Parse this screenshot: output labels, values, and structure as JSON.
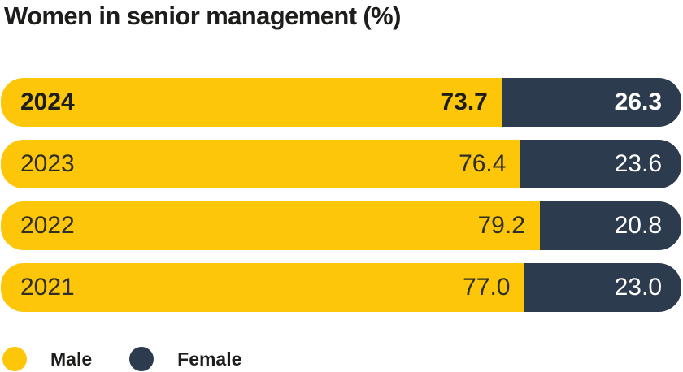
{
  "title": "Women in senior management (%)",
  "colors": {
    "male": "#FDC608",
    "female": "#2C3B4D",
    "title_text": "#1D1D1B",
    "value_on_yellow": "#2E2E2C",
    "value_on_navy": "#FFFFFF"
  },
  "legend": [
    {
      "label": "Male",
      "color": "#FDC608"
    },
    {
      "label": "Female",
      "color": "#2C3B4D"
    }
  ],
  "chart_data": {
    "type": "bar",
    "orientation": "horizontal",
    "stacked": true,
    "title": "Women in senior management (%)",
    "categories": [
      "2024",
      "2023",
      "2022",
      "2021"
    ],
    "series": [
      {
        "name": "Male",
        "values": [
          73.7,
          76.4,
          79.2,
          77.0
        ]
      },
      {
        "name": "Female",
        "values": [
          26.3,
          23.6,
          20.8,
          23.0
        ]
      }
    ],
    "value_labels": [
      [
        "73.7",
        "26.3"
      ],
      [
        "76.4",
        "23.6"
      ],
      [
        "79.2",
        "20.8"
      ],
      [
        "77.0",
        "23.0"
      ]
    ],
    "xlim": [
      0,
      100
    ],
    "emphasized_category": "2024",
    "legend_position": "bottom-left",
    "grid": false
  }
}
